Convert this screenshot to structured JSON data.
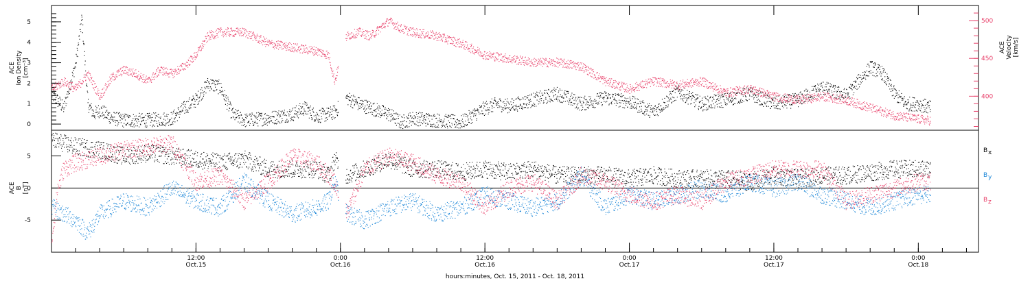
{
  "xaxis": {
    "title": "hours:minutes, Oct. 15, 2011 - Oct. 18, 2011",
    "ticks": [
      {
        "time": "12:00",
        "date": "Oct.15",
        "h": 12
      },
      {
        "time": "0:00",
        "date": "Oct.16",
        "h": 24
      },
      {
        "time": "12:00",
        "date": "Oct.16",
        "h": 36
      },
      {
        "time": "0:00",
        "date": "Oct.17",
        "h": 48
      },
      {
        "time": "12:00",
        "date": "Oct.17",
        "h": 60
      },
      {
        "time": "0:00",
        "date": "Oct.18",
        "h": 72
      }
    ],
    "range_hours": [
      0,
      77
    ]
  },
  "colors": {
    "black": "#000000",
    "pink": "#e8406a",
    "blue": "#1f88d8"
  },
  "chart_data": [
    {
      "type": "scatter",
      "ylabel_left": [
        "ACE",
        "Ion Density",
        "[cm⁻³]"
      ],
      "ylabel_right": [
        "ACE",
        "Velocity",
        "[km/s]"
      ],
      "yticks_left": [
        "0",
        "1",
        "2",
        "3",
        "4",
        "5"
      ],
      "ylim_left": [
        -0.3,
        5.8
      ],
      "yticks_right": [
        "400",
        "450",
        "500"
      ],
      "ylim_right": [
        355,
        520
      ],
      "series": [
        {
          "color": "black",
          "axis": "left",
          "x": [
            0,
            1,
            2,
            2.5,
            3,
            3.5,
            4,
            5,
            6,
            8,
            10,
            11,
            12,
            13,
            14,
            15,
            16,
            18,
            20,
            21,
            22,
            23,
            23.5,
            24.5,
            25.5,
            26.5,
            28,
            29,
            30,
            32,
            34,
            36,
            37,
            38,
            40,
            42,
            44,
            46,
            48,
            50,
            52,
            54,
            56,
            58,
            60,
            62,
            64,
            66,
            68,
            69,
            70,
            71,
            72,
            73
          ],
          "y": [
            1.5,
            0.8,
            3.0,
            5.2,
            1.0,
            0.5,
            0.7,
            0.3,
            0.2,
            0.2,
            0.3,
            0.8,
            1.2,
            2.0,
            1.8,
            0.5,
            0.2,
            0.3,
            0.5,
            0.8,
            0.4,
            0.5,
            0.6,
            1.3,
            1.0,
            0.8,
            0.5,
            0.1,
            0.3,
            0.2,
            0.1,
            0.8,
            1.0,
            0.9,
            1.2,
            1.5,
            1.0,
            1.3,
            1.1,
            0.6,
            1.6,
            1.0,
            1.2,
            1.5,
            1.0,
            1.2,
            1.8,
            1.4,
            2.8,
            2.5,
            1.5,
            1.0,
            1.0,
            0.8
          ]
        },
        {
          "color": "pink",
          "axis": "right",
          "x": [
            0,
            1,
            2,
            3,
            4,
            5,
            6,
            7,
            8,
            9,
            10,
            11,
            12,
            13,
            14,
            16,
            18,
            20,
            22,
            23,
            23.5,
            24.5,
            25.5,
            26.5,
            28,
            29,
            30,
            32,
            34,
            36,
            38,
            40,
            42,
            44,
            46,
            48,
            50,
            52,
            54,
            56,
            58,
            60,
            62,
            64,
            66,
            68,
            70,
            72,
            73
          ],
          "y": [
            410,
            420,
            410,
            430,
            400,
            425,
            435,
            430,
            420,
            435,
            430,
            440,
            455,
            480,
            485,
            485,
            470,
            465,
            460,
            455,
            420,
            480,
            485,
            480,
            500,
            490,
            485,
            480,
            470,
            455,
            450,
            445,
            445,
            440,
            420,
            410,
            420,
            415,
            420,
            405,
            410,
            400,
            395,
            400,
            395,
            385,
            375,
            370,
            368
          ]
        }
      ]
    },
    {
      "type": "scatter",
      "ylabel_left": [
        "ACE",
        "B",
        "[nT]"
      ],
      "yticks_left": [
        "-5",
        "0",
        "5"
      ],
      "ylim_left": [
        -10,
        9
      ],
      "legend": [
        {
          "text": "B",
          "sub": "x",
          "color": "black"
        },
        {
          "text": "B",
          "sub": "y",
          "color": "blue"
        },
        {
          "text": "B",
          "sub": "z",
          "color": "pink"
        }
      ],
      "series": [
        {
          "color": "black",
          "name": "Bx",
          "x": [
            0,
            1,
            2,
            4,
            6,
            8,
            10,
            12,
            14,
            16,
            18,
            20,
            22,
            23,
            23.5,
            24.5,
            26,
            28,
            30,
            32,
            34,
            36,
            38,
            40,
            42,
            44,
            46,
            48,
            50,
            52,
            54,
            56,
            58,
            60,
            62,
            64,
            66,
            68,
            70,
            72,
            73
          ],
          "y": [
            7.5,
            7,
            6.5,
            6,
            5,
            5.5,
            5,
            4.5,
            4,
            4.5,
            3,
            3,
            3,
            2,
            4.5,
            2,
            3,
            4.5,
            3,
            3,
            2.5,
            3,
            2.5,
            3,
            2,
            2,
            2,
            1.5,
            2,
            1.5,
            1.5,
            1.5,
            1,
            2,
            1.5,
            2,
            2,
            2.5,
            3,
            3,
            3
          ]
        },
        {
          "color": "pink",
          "name": "Bz",
          "x": [
            0,
            0.5,
            1,
            2,
            4,
            6,
            8,
            10,
            12,
            14,
            16,
            18,
            20,
            22,
            23,
            23.5,
            24.5,
            26,
            28,
            30,
            32,
            34,
            36,
            38,
            40,
            42,
            44,
            46,
            48,
            50,
            52,
            54,
            56,
            58,
            60,
            62,
            64,
            66,
            68,
            70,
            72,
            73
          ],
          "y": [
            -8,
            0,
            3,
            4,
            5,
            6,
            6.5,
            7,
            1,
            2,
            -2,
            1,
            5,
            4,
            2,
            1,
            -4,
            3,
            5,
            4,
            2,
            1,
            -3,
            0,
            1,
            -2,
            2,
            1,
            -1,
            -2,
            -1,
            -2,
            1,
            2,
            3,
            3,
            3,
            -2,
            -1,
            0,
            1,
            1
          ]
        },
        {
          "color": "blue",
          "name": "By",
          "x": [
            0,
            1,
            2,
            3,
            4,
            6,
            8,
            10,
            12,
            14,
            16,
            18,
            20,
            22,
            23,
            23.5,
            24.5,
            26,
            28,
            30,
            32,
            34,
            36,
            38,
            40,
            42,
            44,
            46,
            48,
            50,
            52,
            54,
            56,
            58,
            60,
            62,
            64,
            66,
            68,
            70,
            72,
            73
          ],
          "y": [
            -3,
            -4,
            -5,
            -7,
            -4,
            -2,
            -3,
            0,
            -2,
            -3,
            1,
            -2,
            -4,
            -3,
            -2,
            1,
            -4,
            -5,
            -3,
            -2,
            -4,
            -3,
            -1,
            -2,
            -3,
            -2,
            2,
            -3,
            -1,
            -2,
            -1,
            0,
            -1,
            1,
            0,
            1,
            -1,
            -2,
            -3,
            -2,
            -1,
            -1
          ]
        }
      ]
    }
  ]
}
